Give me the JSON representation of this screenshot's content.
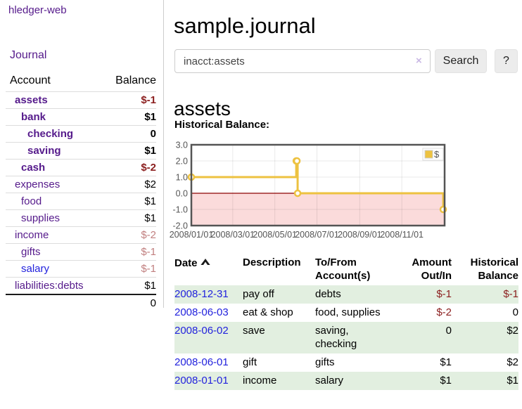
{
  "app": {
    "title": "hledger-web"
  },
  "sidebar": {
    "journal_link": "Journal",
    "header": {
      "account": "Account",
      "balance": "Balance"
    },
    "rows": [
      {
        "account": "assets",
        "balance": "$-1"
      },
      {
        "account": "bank",
        "balance": "$1"
      },
      {
        "account": "checking",
        "balance": "0"
      },
      {
        "account": "saving",
        "balance": "$1"
      },
      {
        "account": "cash",
        "balance": "$-2"
      },
      {
        "account": "expenses",
        "balance": "$2"
      },
      {
        "account": "food",
        "balance": "$1"
      },
      {
        "account": "supplies",
        "balance": "$1"
      },
      {
        "account": "income",
        "balance": "$-2"
      },
      {
        "account": "gifts",
        "balance": "$-1"
      },
      {
        "account": "salary",
        "balance": "$-1"
      },
      {
        "account": "liabilities:debts",
        "balance": "$1"
      }
    ],
    "total": "0"
  },
  "header": {
    "title": "sample.journal"
  },
  "search": {
    "value": "inacct:assets",
    "clear_icon": "×",
    "button": "Search",
    "help_button": "?"
  },
  "main": {
    "account_heading": "assets",
    "chart_label": "Historical Balance:"
  },
  "chart_data": {
    "type": "line",
    "title": "Historical Balance",
    "x_start": "2008-01-01",
    "x_end": "2009-01-02",
    "ylim": [
      -2,
      3
    ],
    "y_ticks": [
      3.0,
      2.0,
      1.0,
      0.0,
      -1.0,
      -2.0
    ],
    "x_ticks": [
      "2008/01/01",
      "2008/03/01",
      "2008/05/01",
      "2008/07/01",
      "2008/09/01",
      "2008/11/01"
    ],
    "series": [
      {
        "name": "$",
        "color": "#edc240",
        "steps": true,
        "points": [
          [
            "2008-01-01",
            1
          ],
          [
            "2008-06-01",
            2
          ],
          [
            "2008-06-02",
            2
          ],
          [
            "2008-06-03",
            0
          ],
          [
            "2008-12-31",
            -1
          ]
        ]
      }
    ],
    "legend_position": "top-right",
    "grid": true,
    "negative_region_color": "#fbdbdb",
    "zero_line_color": "#8c0000",
    "axis_text_color": "#545454",
    "border_color": "#545454"
  },
  "table": {
    "headers": {
      "date": "Date",
      "description": "Description",
      "account": "To/From Account(s)",
      "amount": "Amount Out/In",
      "balance": "Historical Balance"
    },
    "rows": [
      {
        "date": "2008-12-31",
        "description": "pay off",
        "account": "debts",
        "amount": "$-1",
        "balance": "$-1"
      },
      {
        "date": "2008-06-03",
        "description": "eat & shop",
        "account": "food, supplies",
        "amount": "$-2",
        "balance": "0"
      },
      {
        "date": "2008-06-02",
        "description": "save",
        "account": "saving, checking",
        "amount": "0",
        "balance": "$2"
      },
      {
        "date": "2008-06-01",
        "description": "gift",
        "account": "gifts",
        "amount": "$1",
        "balance": "$2"
      },
      {
        "date": "2008-01-01",
        "description": "income",
        "account": "salary",
        "amount": "$1",
        "balance": "$1"
      }
    ]
  }
}
